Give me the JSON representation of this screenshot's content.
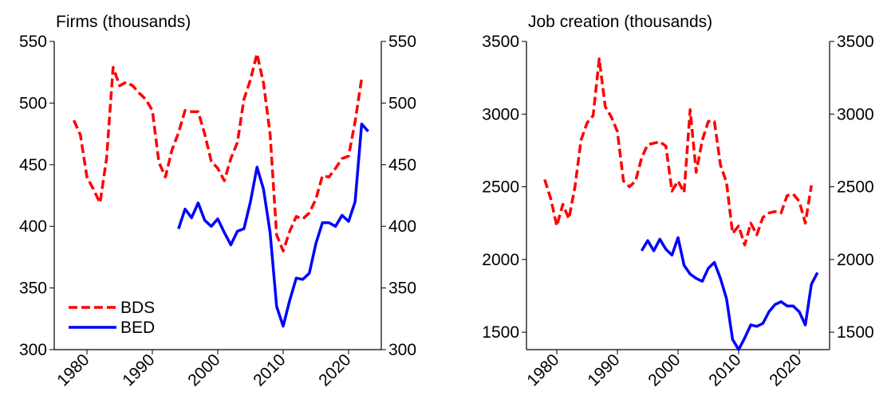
{
  "chart_data": [
    {
      "type": "line",
      "title": "Firms (thousands)",
      "x": [
        1978,
        1979,
        1980,
        1981,
        1982,
        1983,
        1984,
        1985,
        1986,
        1987,
        1988,
        1989,
        1990,
        1991,
        1992,
        1993,
        1994,
        1995,
        1996,
        1997,
        1998,
        1999,
        2000,
        2001,
        2002,
        2003,
        2004,
        2005,
        2006,
        2007,
        2008,
        2009,
        2010,
        2011,
        2012,
        2013,
        2014,
        2015,
        2016,
        2017,
        2018,
        2019,
        2020,
        2021,
        2022,
        2023
      ],
      "xlim": [
        1975,
        2025
      ],
      "xticks": [
        1980,
        1990,
        2000,
        2010,
        2020
      ],
      "ylim": [
        300,
        550
      ],
      "yticks": [
        300,
        350,
        400,
        450,
        500,
        550
      ],
      "legend": "lower left",
      "series": [
        {
          "name": "BDS",
          "color": "#ff0000",
          "linestyle": "dashed",
          "values": [
            486,
            474,
            440,
            430,
            419,
            455,
            529,
            514,
            517,
            514,
            508,
            503,
            494,
            452,
            440,
            462,
            476,
            494,
            493,
            493,
            475,
            453,
            447,
            437,
            455,
            468,
            503,
            519,
            540,
            516,
            475,
            393,
            380,
            396,
            408,
            406,
            411,
            422,
            441,
            440,
            447,
            455,
            457,
            485,
            520,
            null
          ]
        },
        {
          "name": "BED",
          "color": "#0000ff",
          "linestyle": "solid",
          "values": [
            null,
            null,
            null,
            null,
            null,
            null,
            null,
            null,
            null,
            null,
            null,
            null,
            null,
            null,
            null,
            null,
            398,
            414,
            407,
            419,
            405,
            400,
            406,
            395,
            385,
            396,
            398,
            420,
            448,
            430,
            395,
            335,
            319,
            340,
            358,
            357,
            362,
            386,
            403,
            403,
            400,
            409,
            404,
            420,
            483,
            477
          ]
        }
      ]
    },
    {
      "type": "line",
      "title": "Job creation (thousands)",
      "x": [
        1978,
        1979,
        1980,
        1981,
        1982,
        1983,
        1984,
        1985,
        1986,
        1987,
        1988,
        1989,
        1990,
        1991,
        1992,
        1993,
        1994,
        1995,
        1996,
        1997,
        1998,
        1999,
        2000,
        2001,
        2002,
        2003,
        2004,
        2005,
        2006,
        2007,
        2008,
        2009,
        2010,
        2011,
        2012,
        2013,
        2014,
        2015,
        2016,
        2017,
        2018,
        2019,
        2020,
        2021,
        2022,
        2023
      ],
      "xlim": [
        1975,
        2025
      ],
      "xticks": [
        1980,
        1990,
        2000,
        2010,
        2020
      ],
      "ylim": [
        1380,
        3500
      ],
      "yticks": [
        1500,
        2000,
        2500,
        3000,
        3500
      ],
      "series": [
        {
          "name": "BDS",
          "color": "#ff0000",
          "linestyle": "dashed",
          "values": [
            2550,
            2420,
            2230,
            2380,
            2280,
            2500,
            2820,
            2940,
            2990,
            3380,
            3050,
            2980,
            2880,
            2540,
            2500,
            2540,
            2700,
            2790,
            2800,
            2810,
            2780,
            2470,
            2540,
            2460,
            3030,
            2600,
            2820,
            2950,
            2950,
            2650,
            2530,
            2180,
            2230,
            2100,
            2250,
            2170,
            2290,
            2320,
            2330,
            2320,
            2440,
            2450,
            2400,
            2250,
            2510,
            null
          ]
        },
        {
          "name": "BED",
          "color": "#0000ff",
          "linestyle": "solid",
          "values": [
            null,
            null,
            null,
            null,
            null,
            null,
            null,
            null,
            null,
            null,
            null,
            null,
            null,
            null,
            null,
            null,
            2060,
            2130,
            2060,
            2140,
            2070,
            2030,
            2150,
            1960,
            1900,
            1870,
            1850,
            1940,
            1980,
            1870,
            1730,
            1450,
            1380,
            1460,
            1550,
            1540,
            1560,
            1640,
            1690,
            1710,
            1680,
            1680,
            1640,
            1550,
            1830,
            1910
          ]
        }
      ]
    }
  ]
}
